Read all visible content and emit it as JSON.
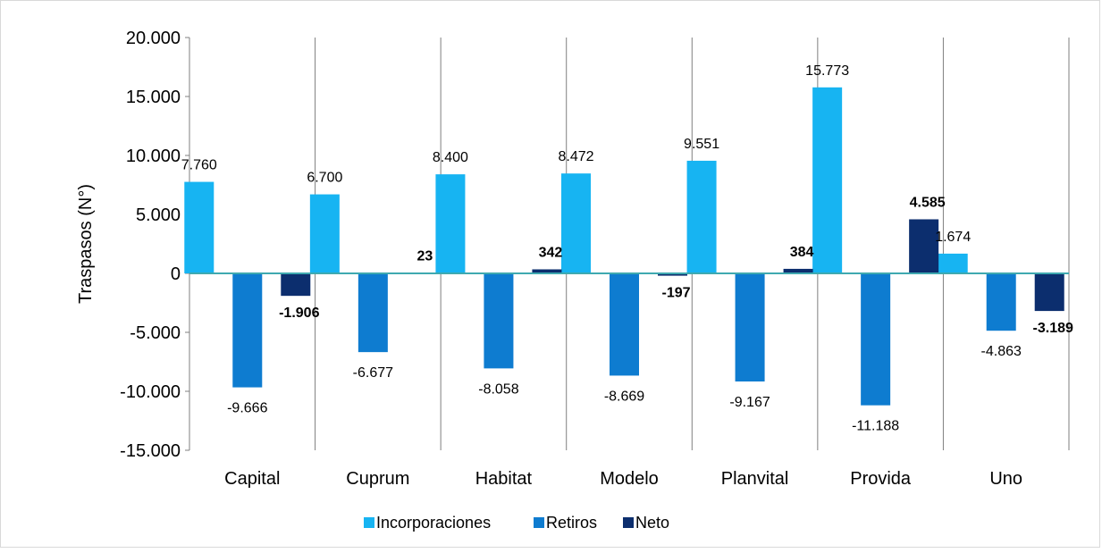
{
  "chart_data": {
    "type": "bar",
    "title": "",
    "xlabel": "",
    "ylabel": "Traspasos (N°)",
    "ylim": [
      -15000,
      20000
    ],
    "yticks": [
      20000,
      15000,
      10000,
      5000,
      0,
      -5000,
      -10000,
      -15000
    ],
    "ytick_labels": [
      "20.000",
      "15.000",
      "10.000",
      "5.000",
      "0",
      "-5.000",
      "-10.000",
      "-15.000"
    ],
    "categories": [
      "Capital",
      "Cuprum",
      "Habitat",
      "Modelo",
      "Planvital",
      "Provida",
      "Uno"
    ],
    "series": [
      {
        "name": "Incorporaciones",
        "color": "#17b4f2",
        "values": [
          7760,
          6700,
          8400,
          8472,
          9551,
          15773,
          1674
        ],
        "labels": [
          "7.760",
          "6.700",
          "8.400",
          "8.472",
          "9.551",
          "15.773",
          "1.674"
        ],
        "label_bold": false
      },
      {
        "name": "Retiros",
        "color": "#0e7cd0",
        "values": [
          -9666,
          -6677,
          -8058,
          -8669,
          -9167,
          -11188,
          -4863
        ],
        "labels": [
          "-9.666",
          "-6.677",
          "-8.058",
          "-8.669",
          "-9.167",
          "-11.188",
          "-4.863"
        ],
        "label_bold": false
      },
      {
        "name": "Neto",
        "color": "#0c2e6e",
        "values": [
          -1906,
          23,
          342,
          -197,
          384,
          4585,
          -3189
        ],
        "labels": [
          "-1.906",
          "23",
          "342",
          "-197",
          "384",
          "4.585",
          "-3.189"
        ],
        "label_bold": true
      }
    ],
    "grid": false,
    "category_separators": true,
    "zero_line_color": "#3fa9b0",
    "legend_position": "bottom"
  }
}
